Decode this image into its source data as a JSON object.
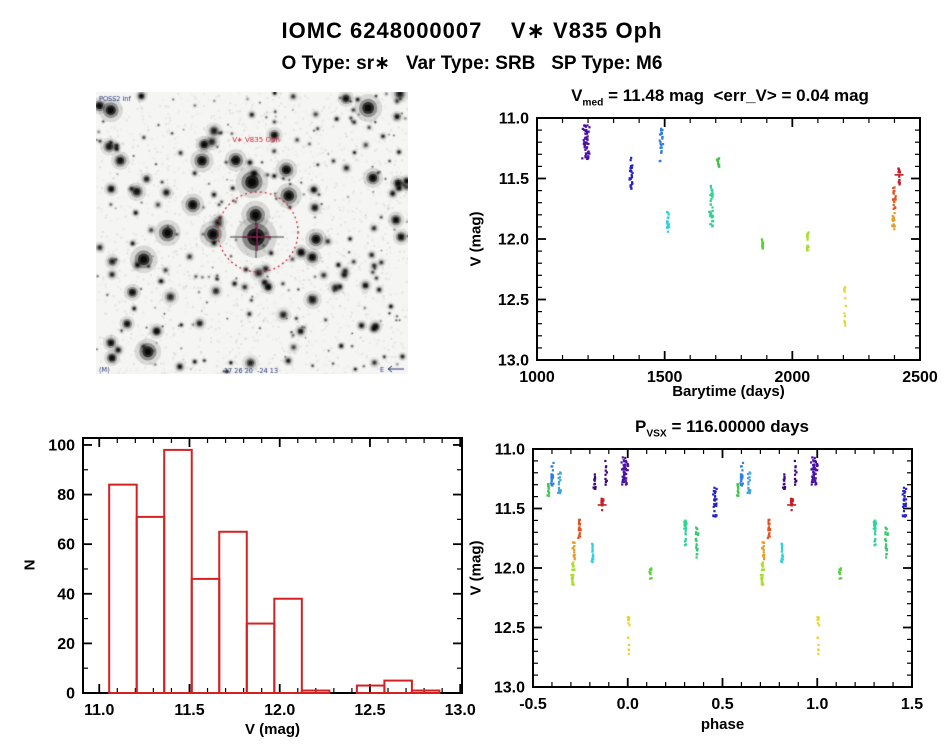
{
  "header": {
    "title": "IOMC 6248000007    V∗ V835 Oph",
    "subtitle": "O Type: sr∗   Var Type: SRB   SP Type: M6"
  },
  "finder": {
    "survey_label": "POSS2 inf",
    "target_label": "V∗ V835 Oph",
    "coords_label": "17 26 20  -24 13",
    "corner_label": "(M)",
    "orientation_label": "E",
    "circle_color": "#cc2233",
    "annotation_color": "#223377"
  },
  "palette": {
    "violet": "#4a10a5",
    "darkpurple": "#3f0878",
    "navy": "#2222cc",
    "blue": "#2d7fe0",
    "lightblue": "#3fa5e0",
    "cyan": "#2fd2d8",
    "springgreen": "#2fd596",
    "seagreen": "#34cc70",
    "green": "#3cc84a",
    "midgreen": "#55d234",
    "yellowgreen": "#a8de2c",
    "yellow": "#ecd22a",
    "orange": "#eb9a24",
    "orangered": "#e05420",
    "red": "#c41e28"
  },
  "chart_data": [
    {
      "id": "timeseries",
      "type": "scatter",
      "title": "V_{med} = 11.48 mag  <err_V> = 0.04 mag",
      "xlabel": "Barytime (days)",
      "ylabel": "V (mag)",
      "xlim": [
        1000,
        2500
      ],
      "ylim": [
        13.0,
        11.0
      ],
      "xticks": [
        1000,
        1500,
        2000,
        2500
      ],
      "yticks": [
        11.0,
        11.5,
        12.0,
        12.5,
        13.0
      ],
      "x_minor": 100,
      "y_minor": 0.1,
      "y_axis_inverted": true,
      "clusters": [
        {
          "t": 1192,
          "jx": 4,
          "v1": 11.06,
          "v2": 11.34,
          "n": 55,
          "color": "violet"
        },
        {
          "t": 1368,
          "jx": 2,
          "v1": 11.3,
          "v2": 11.59,
          "n": 28,
          "color": "navy"
        },
        {
          "t": 1487,
          "jx": 2,
          "v1": 11.08,
          "v2": 11.36,
          "n": 24,
          "color": "blue"
        },
        {
          "t": 1512,
          "jx": 2,
          "v1": 11.77,
          "v2": 11.94,
          "n": 18,
          "color": "cyan"
        },
        {
          "t": 1684,
          "jx": 2.5,
          "v1": 11.56,
          "v2": 11.9,
          "n": 36,
          "color": "springgreen"
        },
        {
          "t": 1710,
          "jx": 1.5,
          "v1": 11.3,
          "v2": 11.41,
          "n": 12,
          "color": "green"
        },
        {
          "t": 1882,
          "jx": 1.5,
          "v1": 11.98,
          "v2": 12.08,
          "n": 12,
          "color": "midgreen"
        },
        {
          "t": 2060,
          "jx": 1.5,
          "v1": 11.94,
          "v2": 12.13,
          "n": 18,
          "color": "yellowgreen"
        },
        {
          "t": 2205,
          "jx": 1.5,
          "v1": 12.38,
          "v2": 12.76,
          "n": 13,
          "color": "yellow",
          "sparse": true
        },
        {
          "t": 2396,
          "jx": 1.5,
          "v1": 11.78,
          "v2": 11.92,
          "n": 14,
          "color": "orange"
        },
        {
          "t": 2400,
          "jx": 1.5,
          "v1": 11.57,
          "v2": 11.79,
          "n": 18,
          "color": "orangered"
        },
        {
          "t": 2418,
          "jx": 2,
          "v1": 11.39,
          "v2": 11.55,
          "n": 14,
          "color": "red",
          "cap": 11.47
        }
      ]
    },
    {
      "id": "histogram",
      "type": "bar",
      "title": "",
      "xlabel": "V (mag)",
      "ylabel": "N",
      "xlim": [
        10.91,
        13.01
      ],
      "ylim": [
        0,
        102.8
      ],
      "xticks": [
        11.0,
        11.5,
        12.0,
        12.5,
        13.0
      ],
      "yticks": [
        0,
        20,
        40,
        60,
        80,
        100
      ],
      "x_minor": 0.1,
      "y_minor": 10,
      "bar_color": "#d42222",
      "bin_start": 11.055,
      "bin_width": 0.1525,
      "counts": [
        84,
        71,
        98,
        46,
        65,
        28,
        38,
        1,
        0,
        3,
        5,
        1
      ]
    },
    {
      "id": "phase",
      "type": "scatter",
      "title": "P_{VSX} = 116.00000 days",
      "xlabel": "phase",
      "ylabel": "V (mag)",
      "xlim": [
        -0.5,
        1.5
      ],
      "ylim": [
        13.0,
        11.0
      ],
      "xticks": [
        -0.5,
        0.0,
        0.5,
        1.0,
        1.5
      ],
      "yticks": [
        11.0,
        11.5,
        12.0,
        12.5,
        13.0
      ],
      "x_minor": 0.1,
      "y_minor": 0.1,
      "y_axis_inverted": true,
      "note": "each cluster is plotted at phase p and p+1",
      "clusters": [
        {
          "p": -0.42,
          "jx": 1.5,
          "v1": 11.29,
          "v2": 11.41,
          "n": 12,
          "color": "green"
        },
        {
          "p": -0.4,
          "jx": 2,
          "v1": 11.11,
          "v2": 11.31,
          "n": 22,
          "color": "blue"
        },
        {
          "p": -0.36,
          "jx": 1.5,
          "v1": 11.19,
          "v2": 11.38,
          "n": 18,
          "color": "lightblue"
        },
        {
          "p": -0.29,
          "jx": 2,
          "v1": 11.95,
          "v2": 12.16,
          "n": 20,
          "color": "yellowgreen"
        },
        {
          "p": -0.285,
          "jx": 1.5,
          "v1": 11.78,
          "v2": 11.93,
          "n": 14,
          "color": "orange"
        },
        {
          "p": -0.255,
          "jx": 1.5,
          "v1": 11.59,
          "v2": 11.78,
          "n": 18,
          "color": "orangered"
        },
        {
          "p": -0.185,
          "jx": 1.5,
          "v1": 11.78,
          "v2": 11.95,
          "n": 16,
          "color": "cyan"
        },
        {
          "p": -0.175,
          "jx": 1.5,
          "v1": 11.21,
          "v2": 11.34,
          "n": 13,
          "color": "darkpurple"
        },
        {
          "p": -0.135,
          "jx": 1.5,
          "v1": 11.4,
          "v2": 11.54,
          "n": 14,
          "color": "red",
          "cap": 11.47
        },
        {
          "p": -0.115,
          "jx": 1.5,
          "v1": 11.08,
          "v2": 11.3,
          "n": 11,
          "color": "darkpurple",
          "sparse": true
        },
        {
          "p": -0.015,
          "jx": 4,
          "v1": 11.07,
          "v2": 11.31,
          "n": 46,
          "color": "violet"
        },
        {
          "p": 0.005,
          "jx": 1.5,
          "v1": 12.4,
          "v2": 12.77,
          "n": 13,
          "color": "yellow",
          "sparse": true
        },
        {
          "p": 0.12,
          "jx": 1.2,
          "v1": 11.99,
          "v2": 12.09,
          "n": 10,
          "color": "midgreen"
        },
        {
          "p": 0.305,
          "jx": 2,
          "v1": 11.58,
          "v2": 11.82,
          "n": 22,
          "color": "springgreen"
        },
        {
          "p": 0.365,
          "jx": 2,
          "v1": 11.66,
          "v2": 11.92,
          "n": 20,
          "color": "seagreen"
        },
        {
          "p": 0.46,
          "jx": 2.5,
          "v1": 11.32,
          "v2": 11.58,
          "n": 26,
          "color": "navy"
        }
      ]
    }
  ]
}
